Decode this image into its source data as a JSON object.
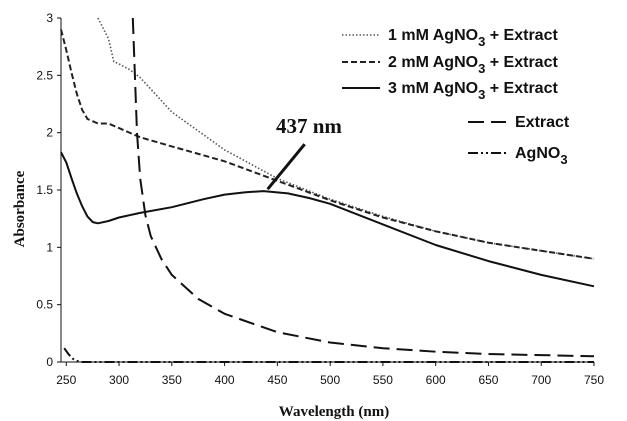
{
  "chart_data": {
    "type": "line",
    "xlabel": "Wavelength (nm)",
    "ylabel": "Absorbance",
    "xlim": [
      245,
      750
    ],
    "ylim": [
      0,
      3
    ],
    "x_ticks": [
      "250",
      "300",
      "350",
      "400",
      "450",
      "500",
      "550",
      "600",
      "650",
      "700",
      "750"
    ],
    "y_ticks": [
      "0",
      "0.5",
      "1",
      "1.5",
      "2",
      "2.5",
      "3"
    ],
    "grid": false,
    "legend_position": "top-right",
    "annotation": {
      "text": "437 nm",
      "x": 437,
      "y": 1.49
    },
    "series": [
      {
        "name": "1 mM AgNO3 + Extract",
        "legend_parts": [
          "1 mM AgNO",
          "3",
          " + Extract"
        ],
        "style": "dotted",
        "color": "#555555",
        "x": [
          280,
          290,
          295,
          300,
          310,
          320,
          350,
          400,
          450,
          500,
          550,
          600,
          650,
          700,
          750
        ],
        "y": [
          3.0,
          2.82,
          2.62,
          2.6,
          2.55,
          2.48,
          2.18,
          1.85,
          1.6,
          1.42,
          1.27,
          1.14,
          1.04,
          0.97,
          0.9
        ]
      },
      {
        "name": "2 mM AgNO3 + Extract",
        "legend_parts": [
          "2 mM AgNO",
          "3",
          " + Extract"
        ],
        "style": "dashed",
        "color": "#222222",
        "x": [
          245,
          250,
          255,
          260,
          265,
          270,
          275,
          280,
          290,
          300,
          320,
          350,
          400,
          450,
          500,
          550,
          600,
          650,
          700,
          750
        ],
        "y": [
          2.9,
          2.72,
          2.52,
          2.34,
          2.2,
          2.12,
          2.1,
          2.08,
          2.08,
          2.04,
          1.96,
          1.88,
          1.75,
          1.58,
          1.41,
          1.26,
          1.14,
          1.04,
          0.97,
          0.9
        ]
      },
      {
        "name": "3 mM AgNO3 + Extract",
        "legend_parts": [
          "3 mM AgNO",
          "3",
          " + Extract"
        ],
        "style": "solid",
        "color": "#111111",
        "x": [
          245,
          250,
          255,
          260,
          265,
          270,
          275,
          280,
          290,
          300,
          320,
          350,
          380,
          400,
          420,
          437,
          460,
          480,
          500,
          550,
          600,
          650,
          700,
          750
        ],
        "y": [
          1.83,
          1.74,
          1.6,
          1.47,
          1.36,
          1.27,
          1.22,
          1.21,
          1.23,
          1.26,
          1.3,
          1.35,
          1.42,
          1.46,
          1.48,
          1.49,
          1.47,
          1.43,
          1.38,
          1.2,
          1.02,
          0.88,
          0.76,
          0.66
        ]
      },
      {
        "name": "Extract",
        "legend_parts": [
          "Extract",
          "",
          ""
        ],
        "style": "longdash",
        "color": "#111111",
        "x": [
          313,
          315,
          317,
          320,
          325,
          330,
          340,
          350,
          375,
          400,
          450,
          500,
          550,
          600,
          650,
          700,
          750
        ],
        "y": [
          3.0,
          2.5,
          2.0,
          1.6,
          1.28,
          1.1,
          0.9,
          0.76,
          0.55,
          0.42,
          0.26,
          0.17,
          0.12,
          0.09,
          0.07,
          0.06,
          0.05
        ]
      },
      {
        "name": "AgNO3",
        "legend_parts": [
          "AgNO",
          "3",
          ""
        ],
        "style": "dashdot",
        "color": "#111111",
        "x": [
          248,
          252,
          256,
          260,
          265,
          270,
          300,
          400,
          500,
          600,
          700,
          750
        ],
        "y": [
          0.12,
          0.07,
          0.03,
          0.01,
          0.0,
          0.0,
          0.0,
          0.0,
          0.0,
          0.0,
          0.0,
          0.0
        ]
      }
    ]
  }
}
